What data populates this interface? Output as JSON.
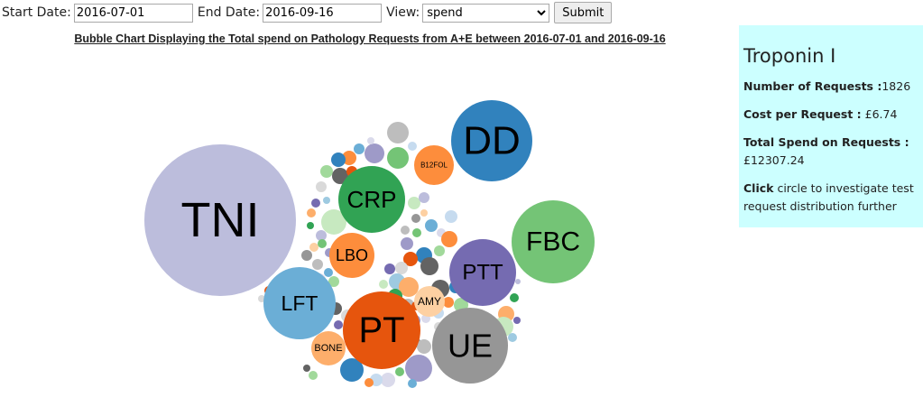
{
  "form": {
    "start_label": "Start Date:",
    "start_value": "2016-07-01",
    "end_label": "End Date:",
    "end_value": "2016-09-16",
    "view_label": "View:",
    "view_value": "spend",
    "submit_label": "Submit"
  },
  "chart_data": {
    "type": "bubble",
    "title": "Bubble Chart Displaying the Total spend on Pathology Requests from A+E between 2016-07-01 and 2016-09-16",
    "bubbles": [
      {
        "label": "TNI",
        "color": "#bcbddc"
      },
      {
        "label": "DD",
        "color": "#3182bd"
      },
      {
        "label": "FBC",
        "color": "#74c476"
      },
      {
        "label": "PT",
        "color": "#e6550d"
      },
      {
        "label": "UE",
        "color": "#969696"
      },
      {
        "label": "CRP",
        "color": "#31a354"
      },
      {
        "label": "PTT",
        "color": "#756bb1"
      },
      {
        "label": "LFT",
        "color": "#6baed6"
      },
      {
        "label": "LBO",
        "color": "#fd8d3c"
      },
      {
        "label": "B12FOL",
        "color": "#fd8d3c"
      },
      {
        "label": "AMY",
        "color": "#fdd0a2"
      },
      {
        "label": "BONE",
        "color": "#fdae6b"
      },
      {
        "label": "",
        "color": "#bdbdbd"
      },
      {
        "label": "",
        "color": "#9e9ac8"
      },
      {
        "label": "",
        "color": "#74c476"
      },
      {
        "label": "",
        "color": "#6baed6"
      },
      {
        "label": "",
        "color": "#dadaeb"
      },
      {
        "label": "",
        "color": "#c6dbef"
      },
      {
        "label": "",
        "color": "#fd8d3c"
      },
      {
        "label": "",
        "color": "#3182bd"
      },
      {
        "label": "",
        "color": "#a1d99b"
      },
      {
        "label": "",
        "color": "#636363"
      },
      {
        "label": "",
        "color": "#e6550d"
      },
      {
        "label": "",
        "color": "#d9d9d9"
      },
      {
        "label": "",
        "color": "#756bb1"
      },
      {
        "label": "",
        "color": "#9ecae1"
      },
      {
        "label": "",
        "color": "#fdae6b"
      },
      {
        "label": "",
        "color": "#31a354"
      },
      {
        "label": "",
        "color": "#c7e9c0"
      },
      {
        "label": "",
        "color": "#bcbddc"
      },
      {
        "label": "",
        "color": "#fdd0a2"
      },
      {
        "label": "",
        "color": "#969696"
      }
    ]
  },
  "info": {
    "name": "Troponin I",
    "requests_label": "Number of Requests :",
    "requests_value": "1826",
    "cost_label": "Cost per Request :",
    "cost_value": " £6.74",
    "total_label": "Total Spend on Requests :",
    "total_value": "£12307.24",
    "hint_bold": "Click",
    "hint_rest": " circle to investigate test request distribution further"
  }
}
